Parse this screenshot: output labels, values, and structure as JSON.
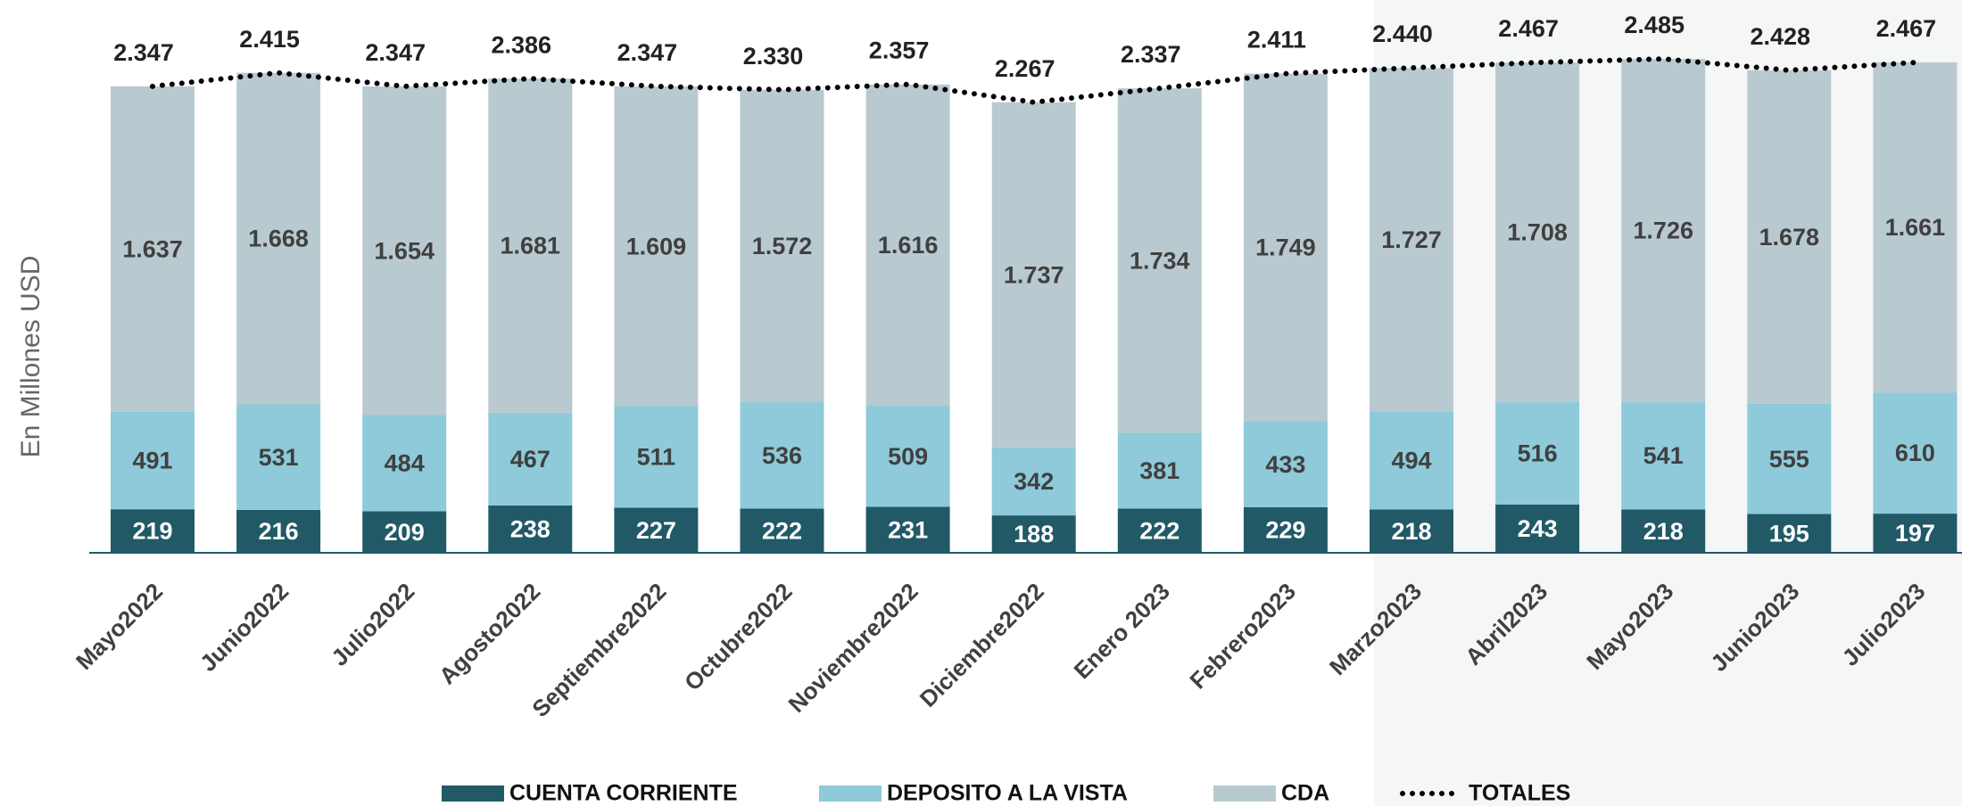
{
  "chart_data": {
    "type": "bar",
    "stacked": true,
    "y_label": "En Millones USD",
    "categories": [
      "Mayo2022",
      "Junio2022",
      "Julio2022",
      "Agosto2022",
      "Septiembre2022",
      "Octubre2022",
      "Noviembre2022",
      "Diciembre2022",
      "Enero 2023",
      "Febrero2023",
      "Marzo2023",
      "Abril2023",
      "Mayo2023",
      "Junio2023",
      "Julio2023"
    ],
    "series": [
      {
        "name": "CUENTA CORRIENTE",
        "color": "#215967",
        "values": [
          219,
          216,
          209,
          238,
          227,
          222,
          231,
          188,
          222,
          229,
          218,
          243,
          218,
          195,
          197
        ]
      },
      {
        "name": "DEPOSITO A LA VISTA",
        "color": "#8ecad9",
        "values": [
          491,
          531,
          484,
          467,
          511,
          536,
          509,
          342,
          381,
          433,
          494,
          516,
          541,
          555,
          610
        ]
      },
      {
        "name": "CDA",
        "color": "#b9c9d0",
        "values": [
          1637,
          1668,
          1654,
          1681,
          1609,
          1572,
          1616,
          1737,
          1734,
          1749,
          1727,
          1708,
          1726,
          1678,
          1661
        ],
        "value_labels": [
          "1.637",
          "1.668",
          "1.654",
          "1.681",
          "1.609",
          "1.572",
          "1.616",
          "1.737",
          "1.734",
          "1.749",
          "1.727",
          "1.708",
          "1.726",
          "1.678",
          "1.661"
        ]
      },
      {
        "name": "TOTALES",
        "type": "line",
        "style": "dotted",
        "color": "#000000",
        "values": [
          2347,
          2415,
          2347,
          2386,
          2347,
          2330,
          2357,
          2267,
          2337,
          2411,
          2440,
          2467,
          2485,
          2428,
          2467
        ],
        "value_labels": [
          "2.347",
          "2.415",
          "2.347",
          "2.386",
          "2.347",
          "2.330",
          "2.357",
          "2.267",
          "2.337",
          "2.411",
          "2.440",
          "2.467",
          "2.485",
          "2.428",
          "2.467"
        ]
      }
    ]
  }
}
